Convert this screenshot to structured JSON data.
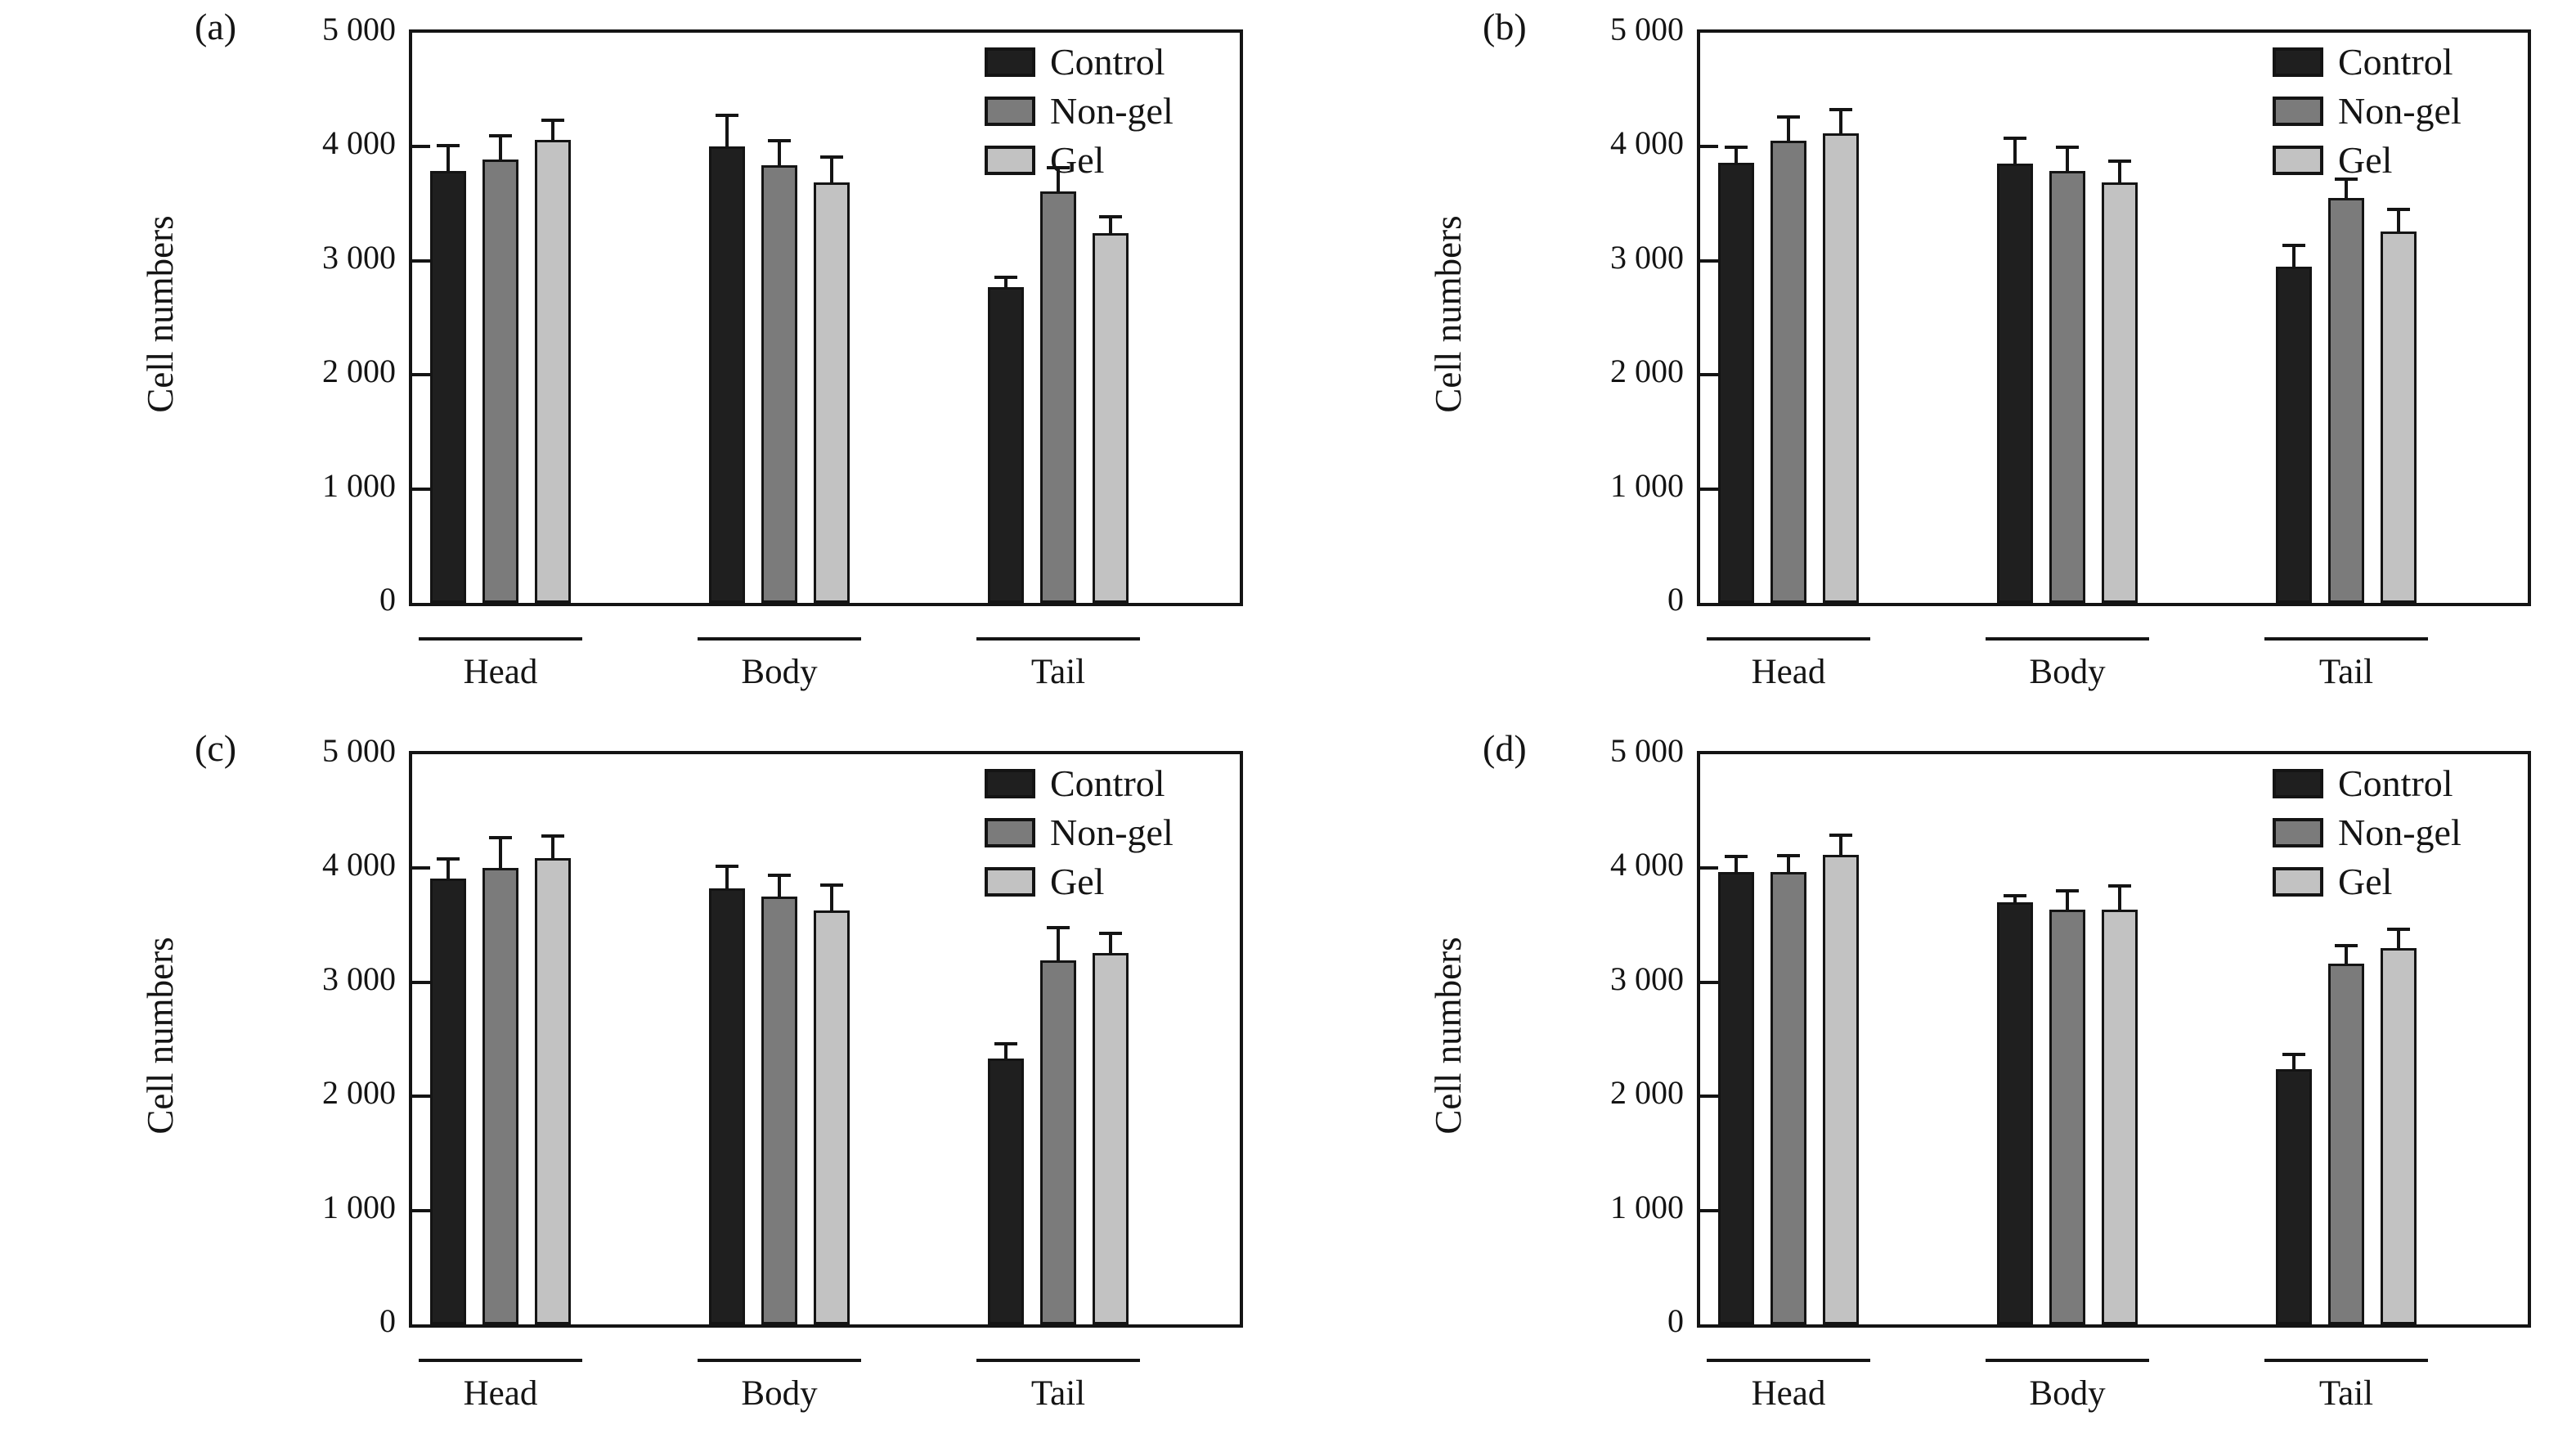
{
  "figure": {
    "y_axis_title": "Cell numbers",
    "ytick_labels": [
      "0",
      "1 000",
      "2 000",
      "3 000",
      "4 000",
      "5 000"
    ],
    "colors": {
      "control": "#1f1f1f",
      "non_gel": "#7b7b7b",
      "gel": "#c2c2c2",
      "outline": "#141414"
    }
  },
  "chart_data": [
    {
      "type": "bar",
      "panel": "(a)",
      "ylabel": "Cell numbers",
      "ylim": [
        0,
        5000
      ],
      "yticks": [
        0,
        1000,
        2000,
        3000,
        4000,
        5000
      ],
      "ytick_labels": [
        "0",
        "1 000",
        "2 000",
        "3 000",
        "4 000",
        "5 000"
      ],
      "categories": [
        "Head",
        "Body",
        "Tail"
      ],
      "grid": false,
      "legend_position": "top-right",
      "series": [
        {
          "name": "Control",
          "color": "#1f1f1f",
          "values": [
            3790,
            4000,
            2770
          ],
          "errors": [
            240,
            290,
            100
          ]
        },
        {
          "name": "Non-gel",
          "color": "#7b7b7b",
          "values": [
            3890,
            3840,
            3610
          ],
          "errors": [
            220,
            230,
            220
          ]
        },
        {
          "name": "Gel",
          "color": "#c2c2c2",
          "values": [
            4060,
            3690,
            3240
          ],
          "errors": [
            190,
            240,
            160
          ]
        }
      ]
    },
    {
      "type": "bar",
      "panel": "(b)",
      "ylabel": "Cell numbers",
      "ylim": [
        0,
        5000
      ],
      "yticks": [
        0,
        1000,
        2000,
        3000,
        4000,
        5000
      ],
      "ytick_labels": [
        "0",
        "1 000",
        "2 000",
        "3 000",
        "4 000",
        "5 000"
      ],
      "categories": [
        "Head",
        "Body",
        "Tail"
      ],
      "grid": false,
      "legend_position": "top-right",
      "series": [
        {
          "name": "Control",
          "color": "#1f1f1f",
          "values": [
            3860,
            3850,
            2950
          ],
          "errors": [
            150,
            240,
            200
          ]
        },
        {
          "name": "Non-gel",
          "color": "#7b7b7b",
          "values": [
            4050,
            3790,
            3550
          ],
          "errors": [
            220,
            220,
            180
          ]
        },
        {
          "name": "Gel",
          "color": "#c2c2c2",
          "values": [
            4120,
            3690,
            3260
          ],
          "errors": [
            220,
            200,
            210
          ]
        }
      ]
    },
    {
      "type": "bar",
      "panel": "(c)",
      "ylabel": "Cell numbers",
      "ylim": [
        0,
        5000
      ],
      "yticks": [
        0,
        1000,
        2000,
        3000,
        4000,
        5000
      ],
      "ytick_labels": [
        "0",
        "1 000",
        "2 000",
        "3 000",
        "4 000",
        "5 000"
      ],
      "categories": [
        "Head",
        "Body",
        "Tail"
      ],
      "grid": false,
      "legend_position": "top-right",
      "series": [
        {
          "name": "Control",
          "color": "#1f1f1f",
          "values": [
            3910,
            3820,
            2330
          ],
          "errors": [
            190,
            210,
            140
          ]
        },
        {
          "name": "Non-gel",
          "color": "#7b7b7b",
          "values": [
            4000,
            3750,
            3190
          ],
          "errors": [
            280,
            200,
            300
          ]
        },
        {
          "name": "Gel",
          "color": "#c2c2c2",
          "values": [
            4090,
            3630,
            3260
          ],
          "errors": [
            210,
            240,
            190
          ]
        }
      ]
    },
    {
      "type": "bar",
      "panel": "(d)",
      "ylabel": "Cell numbers",
      "ylim": [
        0,
        5000
      ],
      "yticks": [
        0,
        1000,
        2000,
        3000,
        4000,
        5000
      ],
      "ytick_labels": [
        "0",
        "1 000",
        "2 000",
        "3 000",
        "4 000",
        "5 000"
      ],
      "categories": [
        "Head",
        "Body",
        "Tail"
      ],
      "grid": false,
      "legend_position": "top-right",
      "series": [
        {
          "name": "Control",
          "color": "#1f1f1f",
          "values": [
            3970,
            3700,
            2240
          ],
          "errors": [
            150,
            70,
            140
          ]
        },
        {
          "name": "Non-gel",
          "color": "#7b7b7b",
          "values": [
            3970,
            3640,
            3160
          ],
          "errors": [
            160,
            180,
            170
          ]
        },
        {
          "name": "Gel",
          "color": "#c2c2c2",
          "values": [
            4120,
            3640,
            3300
          ],
          "errors": [
            190,
            220,
            180
          ]
        }
      ]
    }
  ]
}
